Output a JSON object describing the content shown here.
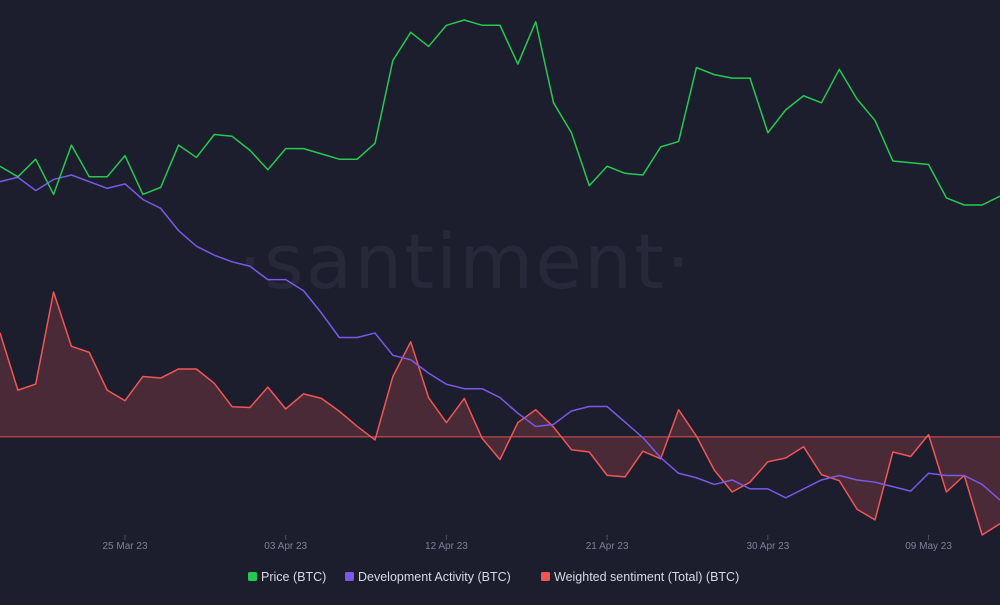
{
  "watermark": "·santiment·",
  "chart_data": {
    "type": "line",
    "x_tick_labels": [
      "25 Mar 23",
      "03 Apr 23",
      "12 Apr 23",
      "21 Apr 23",
      "30 Apr 23",
      "09 May 23"
    ],
    "x_tick_dates": [
      "2023-03-25",
      "2023-04-03",
      "2023-04-12",
      "2023-04-21",
      "2023-04-30",
      "2023-05-09"
    ],
    "x_start_date": "2023-03-18",
    "x_step_days": 1,
    "zero_line": "Weighted sentiment (Total) (BTC)",
    "series": [
      {
        "name": "Price (BTC)",
        "color": "#26c950",
        "fill": false,
        "values": [
          26900,
          26600,
          27100,
          26100,
          27500,
          26600,
          26600,
          27200,
          26100,
          26300,
          27500,
          27150,
          27800,
          27750,
          27350,
          26800,
          27400,
          27400,
          27250,
          27100,
          27100,
          27550,
          29900,
          30700,
          30300,
          30900,
          31050,
          30900,
          30900,
          29800,
          31000,
          28700,
          27850,
          26350,
          26900,
          26700,
          26650,
          27450,
          27600,
          29700,
          29500,
          29400,
          29400,
          27850,
          28500,
          28900,
          28700,
          29650,
          28800,
          28200,
          27050,
          27000,
          26950,
          26000,
          25800,
          25800,
          26050
        ]
      },
      {
        "name": "Development Activity (BTC)",
        "color": "#7a59e8",
        "fill": false,
        "values": [
          152,
          154,
          148,
          153,
          155,
          152,
          149,
          151,
          144,
          140,
          130,
          123,
          119,
          116,
          114,
          108,
          108,
          103,
          93,
          82,
          82,
          84,
          74,
          72,
          66,
          61,
          59,
          59,
          55,
          48,
          42,
          43,
          49,
          51,
          51,
          44,
          37,
          28,
          21,
          19,
          16,
          18,
          14,
          14,
          10,
          14,
          18,
          20,
          18,
          17,
          15,
          13,
          21,
          20,
          20,
          16,
          9
        ]
      },
      {
        "name": "Weighted sentiment (Total) (BTC)",
        "color": "#f05656",
        "fill": true,
        "values": [
          1.38,
          0.62,
          0.7,
          1.92,
          1.2,
          1.12,
          0.62,
          0.48,
          0.8,
          0.78,
          0.9,
          0.9,
          0.71,
          0.4,
          0.39,
          0.66,
          0.37,
          0.57,
          0.51,
          0.34,
          0.14,
          -0.04,
          0.8,
          1.26,
          0.52,
          0.19,
          0.51,
          -0.02,
          -0.3,
          0.19,
          0.36,
          0.13,
          -0.17,
          -0.2,
          -0.51,
          -0.53,
          -0.19,
          -0.29,
          0.36,
          0.01,
          -0.44,
          -0.73,
          -0.6,
          -0.33,
          -0.28,
          -0.13,
          -0.5,
          -0.58,
          -0.96,
          -1.1,
          -0.2,
          -0.26,
          0.03,
          -0.73,
          -0.51,
          -1.3,
          -1.15
        ]
      }
    ],
    "legend_position": "bottom-center",
    "grid": false
  }
}
